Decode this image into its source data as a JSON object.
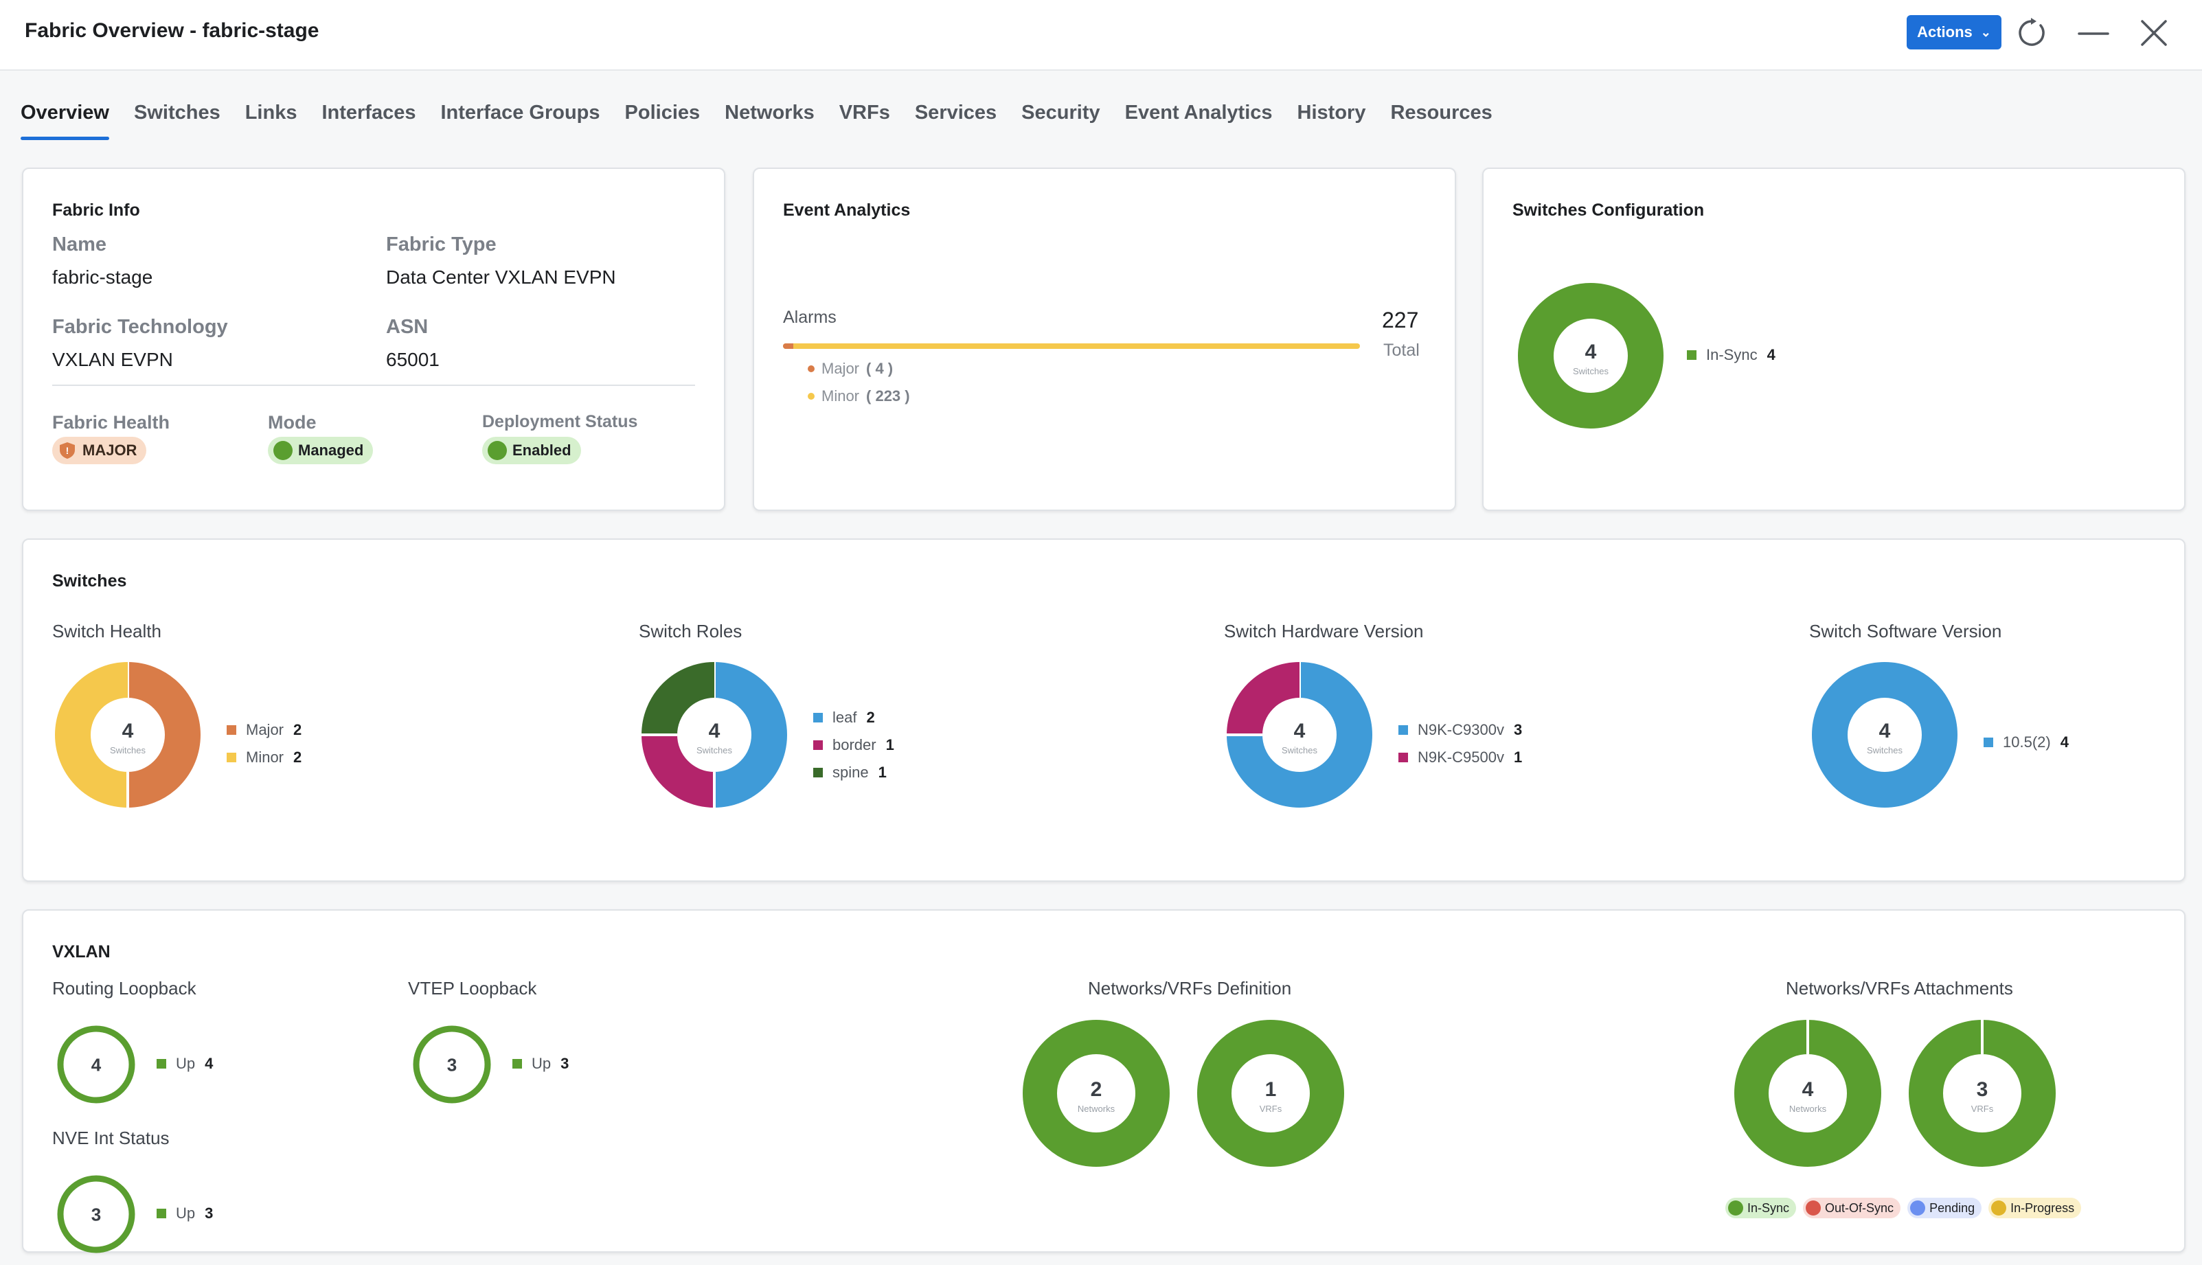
{
  "header": {
    "title": "Fabric Overview - fabric-stage",
    "actions_label": "Actions",
    "icons": [
      "refresh-icon",
      "minimize-icon",
      "close-icon"
    ]
  },
  "tabs": [
    {
      "label": "Overview",
      "active": true
    },
    {
      "label": "Switches"
    },
    {
      "label": "Links"
    },
    {
      "label": "Interfaces"
    },
    {
      "label": "Interface Groups"
    },
    {
      "label": "Policies"
    },
    {
      "label": "Networks"
    },
    {
      "label": "VRFs"
    },
    {
      "label": "Services"
    },
    {
      "label": "Security"
    },
    {
      "label": "Event Analytics"
    },
    {
      "label": "History"
    },
    {
      "label": "Resources"
    }
  ],
  "fabric_info": {
    "title": "Fabric Info",
    "name_label": "Name",
    "name_value": "fabric-stage",
    "type_label": "Fabric Type",
    "type_value": "Data Center VXLAN EVPN",
    "tech_label": "Fabric Technology",
    "tech_value": "VXLAN EVPN",
    "asn_label": "ASN",
    "asn_value": "65001",
    "health_label": "Fabric Health",
    "health_value": "MAJOR",
    "mode_label": "Mode",
    "mode_value": "Managed",
    "deploy_label": "Deployment Status",
    "deploy_value": "Enabled"
  },
  "event_analytics": {
    "title": "Event Analytics",
    "alarms_label": "Alarms",
    "total": "227",
    "total_label": "Total",
    "major_label": "Major",
    "major_count": "( 4 )",
    "minor_label": "Minor",
    "minor_count": "( 223 )",
    "major_fraction": 0.0176,
    "colors": {
      "major": "#d97c48",
      "minor": "#f5c84c"
    }
  },
  "switches_config": {
    "title": "Switches Configuration",
    "center": "4",
    "sub": "Switches",
    "legend": [
      {
        "label": "In-Sync",
        "value": "4",
        "color": "#5a9e2f"
      }
    ]
  },
  "switches": {
    "title": "Switches",
    "health": {
      "label": "Switch Health",
      "center": "4",
      "sub": "Switches",
      "legend": [
        {
          "label": "Major",
          "value": "2",
          "color": "#d97c48"
        },
        {
          "label": "Minor",
          "value": "2",
          "color": "#f5c84c"
        }
      ]
    },
    "roles": {
      "label": "Switch Roles",
      "center": "4",
      "sub": "Switches",
      "legend": [
        {
          "label": "leaf",
          "value": "2",
          "color": "#3f9bd8"
        },
        {
          "label": "border",
          "value": "1",
          "color": "#b3246b"
        },
        {
          "label": "spine",
          "value": "1",
          "color": "#3a6b2a"
        }
      ]
    },
    "hardware": {
      "label": "Switch Hardware Version",
      "center": "4",
      "sub": "Switches",
      "legend": [
        {
          "label": "N9K-C9300v",
          "value": "3",
          "color": "#3f9bd8"
        },
        {
          "label": "N9K-C9500v",
          "value": "1",
          "color": "#b3246b"
        }
      ]
    },
    "software": {
      "label": "Switch Software Version",
      "center": "4",
      "sub": "Switches",
      "legend": [
        {
          "label": "10.5(2)",
          "value": "4",
          "color": "#3f9bd8"
        }
      ]
    }
  },
  "vxlan": {
    "title": "VXLAN",
    "routing_loopback": {
      "label": "Routing Loopback",
      "center": "4",
      "legend_label": "Up",
      "legend_value": "4"
    },
    "vtep_loopback": {
      "label": "VTEP Loopback",
      "center": "3",
      "legend_label": "Up",
      "legend_value": "3"
    },
    "nve_status": {
      "label": "NVE Int Status",
      "center": "3",
      "legend_label": "Up",
      "legend_value": "3"
    },
    "definition": {
      "label": "Networks/VRFs Definition",
      "networks": {
        "center": "2",
        "sub": "Networks"
      },
      "vrfs": {
        "center": "1",
        "sub": "VRFs"
      }
    },
    "attachments": {
      "label": "Networks/VRFs Attachments",
      "networks": {
        "center": "4",
        "sub": "Networks"
      },
      "vrfs": {
        "center": "3",
        "sub": "VRFs"
      },
      "status_legend": [
        {
          "label": "In-Sync",
          "color": "#5a9e2f",
          "bg": "#d6f0cd"
        },
        {
          "label": "Out-Of-Sync",
          "color": "#d9564a",
          "bg": "#f9dcd8"
        },
        {
          "label": "Pending",
          "color": "#6b8ff0",
          "bg": "#dfe6fb"
        },
        {
          "label": "In-Progress",
          "color": "#e0b42a",
          "bg": "#fbf0c8"
        }
      ]
    },
    "up_color": "#5a9e2f"
  }
}
